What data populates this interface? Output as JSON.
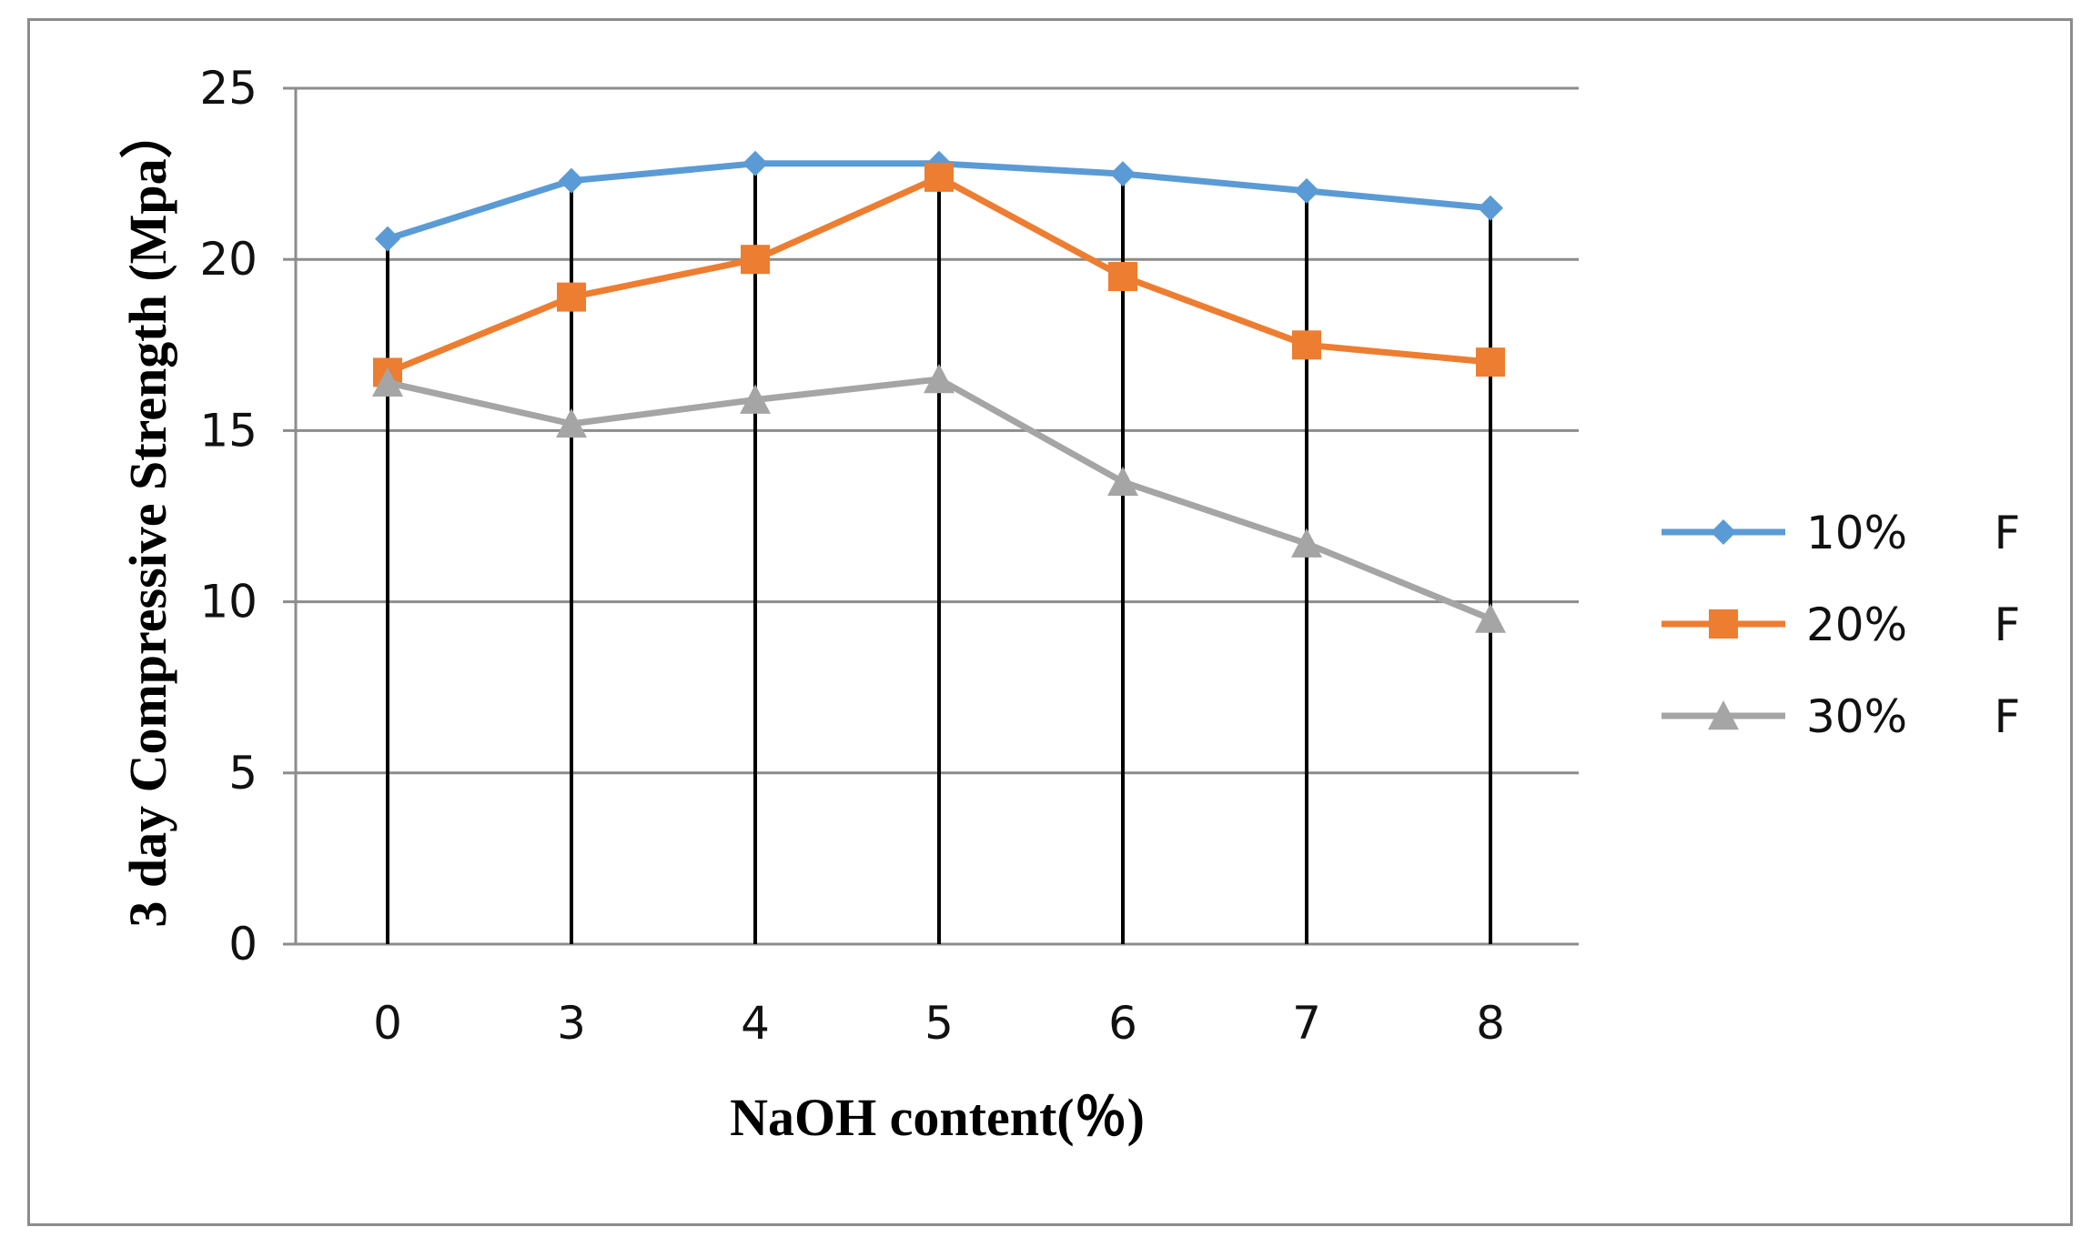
{
  "chart_data": {
    "type": "line",
    "categories": [
      "0",
      "3",
      "4",
      "5",
      "6",
      "7",
      "8"
    ],
    "series": [
      {
        "name": "10%      F",
        "color": "#5b9bd5",
        "marker": "diamond",
        "values": [
          20.6,
          22.3,
          22.8,
          22.8,
          22.5,
          22.0,
          21.5
        ]
      },
      {
        "name": "20%      F",
        "color": "#ed7d31",
        "marker": "square",
        "values": [
          16.7,
          18.9,
          20.0,
          22.4,
          19.5,
          17.5,
          17.0
        ]
      },
      {
        "name": "30%      F",
        "color": "#a5a5a5",
        "marker": "triangle",
        "values": [
          16.4,
          15.2,
          15.9,
          16.5,
          13.5,
          11.7,
          9.5
        ]
      }
    ],
    "xlabel": "NaOH content(％)",
    "ylabel": "3 day Compressive Strength (Mpa）",
    "ylim": [
      0,
      25
    ],
    "yticks": [
      0,
      5,
      10,
      15,
      20,
      25
    ],
    "grid": true,
    "drop_lines": true,
    "legend": "right"
  }
}
